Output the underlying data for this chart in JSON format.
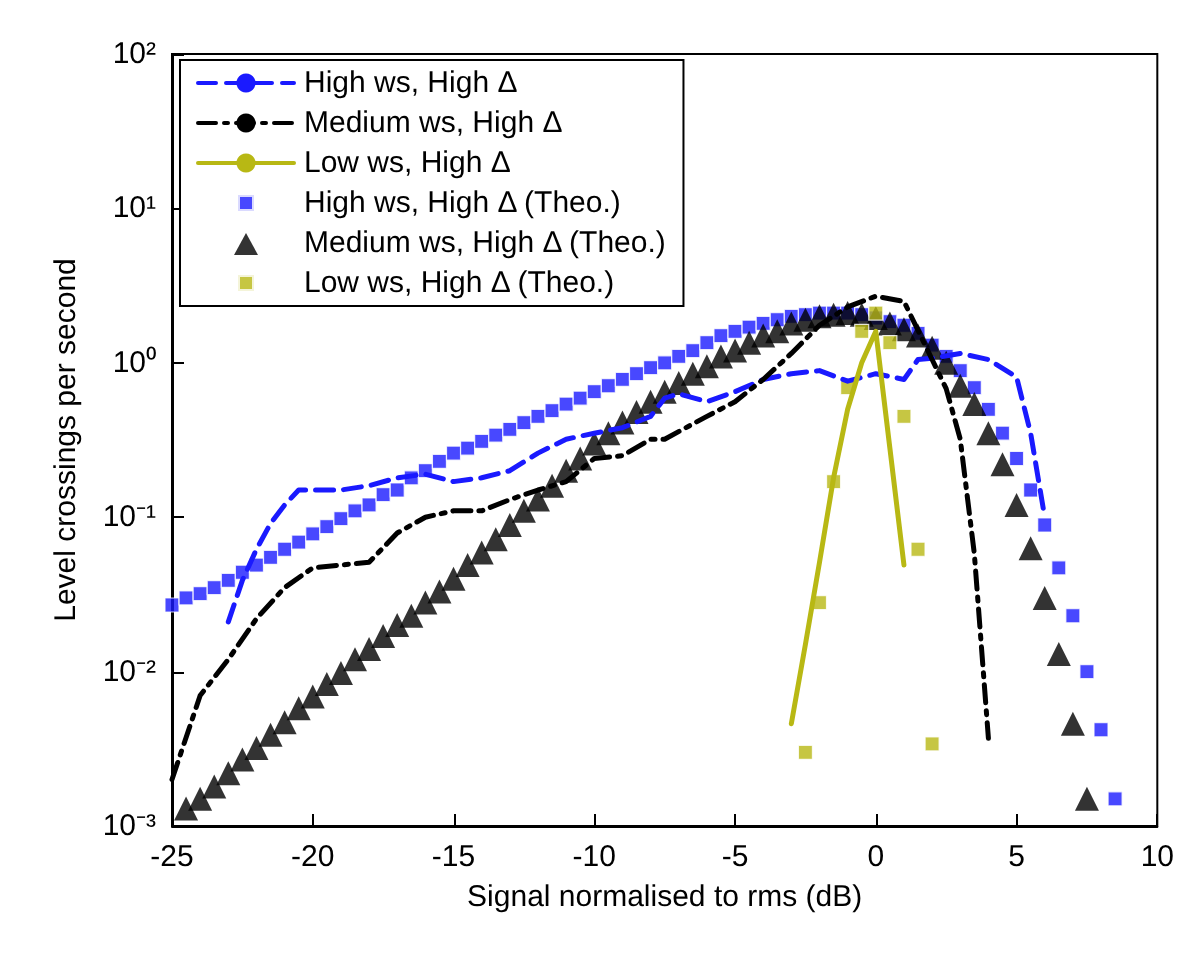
{
  "chart_data": {
    "type": "line",
    "xlabel": "Signal normalised to rms (dB)",
    "ylabel": "Level crossings per second",
    "log": "y",
    "grid": false,
    "legend": "top left",
    "xlim": [
      -25,
      10
    ],
    "xticks": [
      -25,
      -20,
      -15,
      -10,
      -5,
      0,
      5,
      10
    ],
    "ylim": [
      0.001,
      100
    ],
    "yticks": [
      {
        "value": 0.001,
        "label": "10⁻³"
      },
      {
        "value": 0.01,
        "label": "10⁻²"
      },
      {
        "value": 0.1,
        "label": "10⁻¹"
      },
      {
        "value": 1,
        "label": "10⁰"
      },
      {
        "value": 10,
        "label": "10¹"
      },
      {
        "value": 100,
        "label": "10²"
      }
    ],
    "series": [
      {
        "name": "High ws, High Δ",
        "color": "#1a1aff",
        "line_style": "dashed",
        "marker": "none",
        "x": [
          -23,
          -22.5,
          -22,
          -21.5,
          -21,
          -20.5,
          -20,
          -19,
          -18,
          -17,
          -16,
          -15,
          -14,
          -13,
          -12,
          -11,
          -10,
          -9,
          -8,
          -7.5,
          -7,
          -6,
          -5,
          -4,
          -3,
          -2,
          -1,
          0,
          1,
          1.5,
          2,
          3,
          4,
          5,
          5.5,
          6
        ],
        "values": [
          0.021,
          0.039,
          0.062,
          0.091,
          0.12,
          0.15,
          0.15,
          0.15,
          0.16,
          0.18,
          0.19,
          0.17,
          0.18,
          0.2,
          0.26,
          0.32,
          0.35,
          0.38,
          0.45,
          0.59,
          0.63,
          0.56,
          0.65,
          0.78,
          0.85,
          0.89,
          0.76,
          0.85,
          0.78,
          1.05,
          1.07,
          1.15,
          1.05,
          0.81,
          0.35,
          0.1
        ]
      },
      {
        "name": "Medium ws, High Δ",
        "color": "#000000",
        "line_style": "dashdot",
        "marker": "none",
        "x": [
          -25,
          -24,
          -23,
          -22,
          -21,
          -20,
          -19,
          -18,
          -17,
          -16,
          -15,
          -14,
          -13,
          -12,
          -11,
          -10,
          -9,
          -8,
          -7.5,
          -6,
          -5,
          -4,
          -3,
          -2,
          -1,
          0,
          1,
          2,
          2.5,
          3,
          3.5,
          4
        ],
        "values": [
          0.002,
          0.007,
          0.012,
          0.022,
          0.035,
          0.047,
          0.049,
          0.051,
          0.079,
          0.1,
          0.11,
          0.11,
          0.13,
          0.15,
          0.17,
          0.24,
          0.25,
          0.32,
          0.32,
          0.45,
          0.56,
          0.78,
          1.15,
          1.75,
          2.3,
          2.7,
          2.5,
          1.05,
          0.68,
          0.32,
          0.058,
          0.0037
        ]
      },
      {
        "name": "Low ws, High Δ",
        "color": "#b8b814",
        "line_style": "solid",
        "marker": "none",
        "x": [
          -3,
          -2.5,
          -2,
          -1.5,
          -1,
          -0.5,
          0,
          0.5,
          1
        ],
        "values": [
          0.0046,
          0.015,
          0.051,
          0.18,
          0.5,
          1.0,
          1.6,
          0.28,
          0.049
        ]
      },
      {
        "name": "High ws, High Δ (Theo.)",
        "type": "scatter",
        "color": "#1a1aff",
        "marker": "square",
        "x": [
          -25,
          -24.5,
          -24,
          -23.5,
          -23,
          -22.5,
          -22,
          -21.5,
          -21,
          -20.5,
          -20,
          -19.5,
          -19,
          -18.5,
          -18,
          -17.5,
          -17,
          -16.5,
          -16,
          -15.5,
          -15,
          -14.5,
          -14,
          -13.5,
          -13,
          -12.5,
          -12,
          -11.5,
          -11,
          -10.5,
          -10,
          -9.5,
          -9,
          -8.5,
          -8,
          -7.5,
          -7,
          -6.5,
          -6,
          -5.5,
          -5,
          -4.5,
          -4,
          -3.5,
          -3,
          -2.5,
          -2,
          -1.5,
          -1,
          -0.5,
          0,
          0.5,
          1,
          1.5,
          2,
          2.5,
          3,
          3.5,
          4,
          4.5,
          5,
          5.5,
          6,
          6.5,
          7,
          7.5,
          8,
          8.5
        ],
        "values": [
          0.027,
          0.03,
          0.032,
          0.035,
          0.039,
          0.044,
          0.049,
          0.055,
          0.062,
          0.069,
          0.078,
          0.087,
          0.098,
          0.11,
          0.12,
          0.14,
          0.15,
          0.18,
          0.2,
          0.23,
          0.26,
          0.28,
          0.31,
          0.34,
          0.37,
          0.41,
          0.45,
          0.49,
          0.54,
          0.59,
          0.65,
          0.71,
          0.78,
          0.85,
          0.93,
          1.0,
          1.1,
          1.2,
          1.35,
          1.5,
          1.6,
          1.7,
          1.8,
          1.9,
          2.0,
          2.05,
          2.1,
          2.1,
          2.1,
          2.05,
          1.95,
          1.85,
          1.75,
          1.55,
          1.3,
          1.1,
          0.89,
          0.69,
          0.5,
          0.35,
          0.24,
          0.15,
          0.089,
          0.047,
          0.023,
          0.01,
          0.0042,
          0.0015
        ]
      },
      {
        "name": "Medium ws, High Δ (Theo.)",
        "type": "scatter",
        "color": "#000000",
        "marker": "triangle",
        "x": [
          -24.5,
          -24,
          -23.5,
          -23,
          -22.5,
          -22,
          -21.5,
          -21,
          -20.5,
          -20,
          -19.5,
          -19,
          -18.5,
          -18,
          -17.5,
          -17,
          -16.5,
          -16,
          -15.5,
          -15,
          -14.5,
          -14,
          -13.5,
          -13,
          -12.5,
          -12,
          -11.5,
          -11,
          -10.5,
          -10,
          -9.5,
          -9,
          -8.5,
          -8,
          -7.5,
          -7,
          -6.5,
          -6,
          -5.5,
          -5,
          -4.5,
          -4,
          -3.5,
          -3,
          -2.5,
          -2,
          -1.5,
          -1,
          -0.5,
          0,
          0.5,
          1,
          1.5,
          2,
          2.5,
          3,
          3.5,
          4,
          4.5,
          5,
          5.5,
          6,
          6.5,
          7,
          7.5
        ],
        "values": [
          0.0013,
          0.0015,
          0.0018,
          0.0022,
          0.0027,
          0.0032,
          0.0039,
          0.0047,
          0.0058,
          0.0069,
          0.0083,
          0.0098,
          0.012,
          0.014,
          0.017,
          0.02,
          0.023,
          0.028,
          0.033,
          0.04,
          0.049,
          0.059,
          0.072,
          0.089,
          0.11,
          0.13,
          0.16,
          0.2,
          0.24,
          0.3,
          0.35,
          0.41,
          0.48,
          0.56,
          0.65,
          0.74,
          0.85,
          0.95,
          1.1,
          1.2,
          1.35,
          1.5,
          1.6,
          1.8,
          1.9,
          2.0,
          2.05,
          2.1,
          2.05,
          1.95,
          1.8,
          1.65,
          1.5,
          1.25,
          1.0,
          0.71,
          0.54,
          0.35,
          0.22,
          0.12,
          0.063,
          0.03,
          0.013,
          0.0046,
          0.0015
        ]
      },
      {
        "name": "Low ws, High Δ (Theo.)",
        "type": "scatter",
        "color": "#b8b814",
        "marker": "square",
        "x": [
          -2.5,
          -2,
          -1.5,
          -1,
          -0.5,
          0,
          0.5,
          1,
          1.5,
          2
        ],
        "values": [
          0.003,
          0.028,
          0.17,
          0.69,
          1.6,
          2.1,
          1.35,
          0.45,
          0.062,
          0.0034
        ]
      }
    ]
  }
}
